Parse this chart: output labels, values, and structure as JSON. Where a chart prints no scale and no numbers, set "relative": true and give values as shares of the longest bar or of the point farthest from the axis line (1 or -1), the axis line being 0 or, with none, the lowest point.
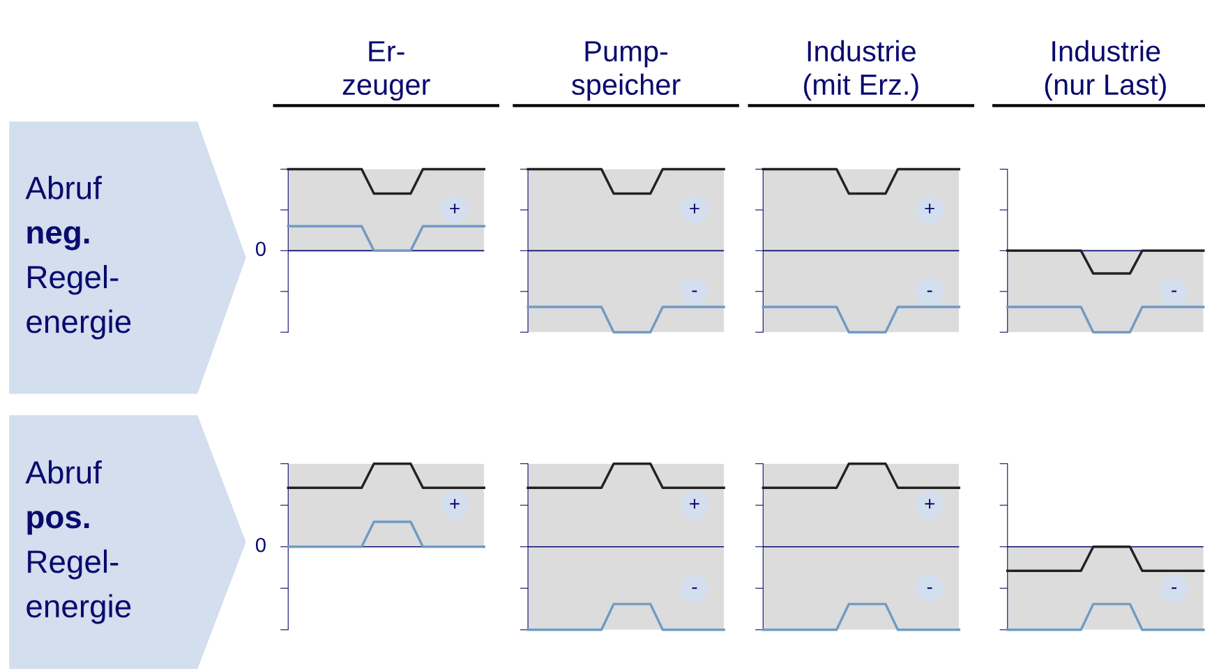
{
  "chart_data": [
    {
      "type": "line",
      "title": "Er-\nzeuger",
      "relative": true,
      "ref_lines": [
        {
          "axis": "y",
          "value": 0,
          "color": "#0a0a6e"
        }
      ],
      "categories": [
        null,
        null,
        null,
        null,
        null,
        null,
        null,
        null,
        null,
        null,
        null,
        null,
        null,
        null,
        null,
        null,
        null
      ],
      "series": [
        {
          "color": "#222222",
          "values": [
            1,
            1,
            1,
            1,
            1,
            1,
            1,
            0.7,
            0.7,
            0.7,
            0.7,
            1,
            1,
            1,
            1,
            1,
            1
          ]
        },
        {
          "color": "#6f9bc4",
          "values": [
            0.3,
            0.3,
            0.3,
            0.3,
            0.3,
            0.3,
            0.3,
            0,
            0,
            0,
            0,
            0.3,
            0.3,
            0.3,
            0.3,
            0.3,
            0.3
          ]
        }
      ],
      "bands": [
        {
          "axis": "y",
          "from": 0,
          "to": 1,
          "label": "+",
          "color": "#dcdcdc"
        }
      ],
      "annotations": [
        "Abruf\nneg.\nRegel-\nenergie",
        "0"
      ]
    },
    {
      "type": "line",
      "title": "Pump-\nspeicher",
      "relative": true,
      "ref_lines": [
        {
          "axis": "y",
          "value": 0,
          "color": "#0a0a6e"
        }
      ],
      "categories": [
        null,
        null,
        null,
        null,
        null,
        null,
        null,
        null,
        null,
        null,
        null,
        null,
        null,
        null,
        null,
        null,
        null
      ],
      "series": [
        {
          "color": "#222222",
          "values": [
            1,
            1,
            1,
            1,
            1,
            1,
            1,
            0.7,
            0.7,
            0.7,
            0.7,
            1,
            1,
            1,
            1,
            1,
            1
          ]
        },
        {
          "color": "#6f9bc4",
          "values": [
            -0.69,
            -0.69,
            -0.69,
            -0.69,
            -0.69,
            -0.69,
            -0.69,
            -1,
            -1,
            -1,
            -1,
            -0.69,
            -0.69,
            -0.69,
            -0.69,
            -0.69,
            -0.69
          ]
        }
      ],
      "bands": [
        {
          "axis": "y",
          "from": 0,
          "to": 1,
          "label": "+",
          "color": "#dcdcdc"
        },
        {
          "axis": "y",
          "from": -1,
          "to": 0,
          "label": "-",
          "color": "#dcdcdc"
        }
      ]
    },
    {
      "type": "line",
      "title": "Industrie\n(mit Erz.)",
      "relative": true,
      "ref_lines": [
        {
          "axis": "y",
          "value": 0,
          "color": "#0a0a6e"
        }
      ],
      "categories": [
        null,
        null,
        null,
        null,
        null,
        null,
        null,
        null,
        null,
        null,
        null,
        null,
        null,
        null,
        null,
        null,
        null
      ],
      "series": [
        {
          "color": "#222222",
          "values": [
            1,
            1,
            1,
            1,
            1,
            1,
            1,
            0.7,
            0.7,
            0.7,
            0.7,
            1,
            1,
            1,
            1,
            1,
            1
          ]
        },
        {
          "color": "#6f9bc4",
          "values": [
            -0.69,
            -0.69,
            -0.69,
            -0.69,
            -0.69,
            -0.69,
            -0.69,
            -1,
            -1,
            -1,
            -1,
            -0.69,
            -0.69,
            -0.69,
            -0.69,
            -0.69,
            -0.69
          ]
        }
      ],
      "bands": [
        {
          "axis": "y",
          "from": 0,
          "to": 1,
          "label": "+",
          "color": "#dcdcdc"
        },
        {
          "axis": "y",
          "from": -1,
          "to": 0,
          "label": "-",
          "color": "#dcdcdc"
        }
      ]
    },
    {
      "type": "line",
      "title": "Industrie\n(nur Last)",
      "relative": true,
      "ref_lines": [
        {
          "axis": "y",
          "value": 0,
          "color": "#0a0a6e"
        }
      ],
      "categories": [
        null,
        null,
        null,
        null,
        null,
        null,
        null,
        null,
        null,
        null,
        null,
        null,
        null,
        null,
        null,
        null,
        null
      ],
      "series": [
        {
          "color": "#222222",
          "values": [
            0,
            0,
            0,
            0,
            0,
            0,
            0,
            -0.28,
            -0.28,
            -0.28,
            -0.28,
            0,
            0,
            0,
            0,
            0,
            0
          ]
        },
        {
          "color": "#6f9bc4",
          "values": [
            -0.69,
            -0.69,
            -0.69,
            -0.69,
            -0.69,
            -0.69,
            -0.69,
            -1,
            -1,
            -1,
            -1,
            -0.69,
            -0.69,
            -0.69,
            -0.69,
            -0.69,
            -0.69
          ]
        }
      ],
      "bands": [
        {
          "axis": "y",
          "from": -1,
          "to": 0,
          "label": "-",
          "color": "#dcdcdc"
        }
      ]
    },
    {
      "type": "line",
      "relative": true,
      "ref_lines": [
        {
          "axis": "y",
          "value": 0,
          "color": "#0a0a6e"
        }
      ],
      "categories": [
        null,
        null,
        null,
        null,
        null,
        null,
        null,
        null,
        null,
        null,
        null,
        null,
        null,
        null,
        null,
        null,
        null
      ],
      "series": [
        {
          "color": "#222222",
          "values": [
            0.71,
            0.71,
            0.71,
            0.71,
            0.71,
            0.71,
            0.71,
            1,
            1,
            1,
            1,
            0.71,
            0.71,
            0.71,
            0.71,
            0.71,
            0.71
          ]
        },
        {
          "color": "#6f9bc4",
          "values": [
            0,
            0,
            0,
            0,
            0,
            0,
            0,
            0.3,
            0.3,
            0.3,
            0.3,
            0,
            0,
            0,
            0,
            0,
            0
          ]
        }
      ],
      "bands": [
        {
          "axis": "y",
          "from": 0,
          "to": 1,
          "label": "+",
          "color": "#dcdcdc"
        }
      ],
      "annotations": [
        "Abruf\npos.\nRegel-\nenergie",
        "0"
      ]
    },
    {
      "type": "line",
      "relative": true,
      "ref_lines": [
        {
          "axis": "y",
          "value": 0,
          "color": "#0a0a6e"
        }
      ],
      "categories": [
        null,
        null,
        null,
        null,
        null,
        null,
        null,
        null,
        null,
        null,
        null,
        null,
        null,
        null,
        null,
        null,
        null
      ],
      "series": [
        {
          "color": "#222222",
          "values": [
            0.71,
            0.71,
            0.71,
            0.71,
            0.71,
            0.71,
            0.71,
            1,
            1,
            1,
            1,
            0.71,
            0.71,
            0.71,
            0.71,
            0.71,
            0.71
          ]
        },
        {
          "color": "#6f9bc4",
          "values": [
            -1,
            -1,
            -1,
            -1,
            -1,
            -1,
            -1,
            -0.69,
            -0.69,
            -0.69,
            -0.69,
            -1,
            -1,
            -1,
            -1,
            -1,
            -1
          ]
        }
      ],
      "bands": [
        {
          "axis": "y",
          "from": 0,
          "to": 1,
          "label": "+",
          "color": "#dcdcdc"
        },
        {
          "axis": "y",
          "from": -1,
          "to": 0,
          "label": "-",
          "color": "#dcdcdc"
        }
      ]
    },
    {
      "type": "line",
      "relative": true,
      "ref_lines": [
        {
          "axis": "y",
          "value": 0,
          "color": "#0a0a6e"
        }
      ],
      "categories": [
        null,
        null,
        null,
        null,
        null,
        null,
        null,
        null,
        null,
        null,
        null,
        null,
        null,
        null,
        null,
        null,
        null
      ],
      "series": [
        {
          "color": "#222222",
          "values": [
            0.71,
            0.71,
            0.71,
            0.71,
            0.71,
            0.71,
            0.71,
            1,
            1,
            1,
            1,
            0.71,
            0.71,
            0.71,
            0.71,
            0.71,
            0.71
          ]
        },
        {
          "color": "#6f9bc4",
          "values": [
            -1,
            -1,
            -1,
            -1,
            -1,
            -1,
            -1,
            -0.69,
            -0.69,
            -0.69,
            -0.69,
            -1,
            -1,
            -1,
            -1,
            -1,
            -1
          ]
        }
      ],
      "bands": [
        {
          "axis": "y",
          "from": 0,
          "to": 1,
          "label": "+",
          "color": "#dcdcdc"
        },
        {
          "axis": "y",
          "from": -1,
          "to": 0,
          "label": "-",
          "color": "#dcdcdc"
        }
      ]
    },
    {
      "type": "line",
      "relative": true,
      "ref_lines": [
        {
          "axis": "y",
          "value": 0,
          "color": "#0a0a6e"
        }
      ],
      "categories": [
        null,
        null,
        null,
        null,
        null,
        null,
        null,
        null,
        null,
        null,
        null,
        null,
        null,
        null,
        null,
        null,
        null
      ],
      "series": [
        {
          "color": "#222222",
          "values": [
            -0.29,
            -0.29,
            -0.29,
            -0.29,
            -0.29,
            -0.29,
            -0.29,
            0,
            0,
            0,
            0,
            -0.29,
            -0.29,
            -0.29,
            -0.29,
            -0.29,
            -0.29
          ]
        },
        {
          "color": "#6f9bc4",
          "values": [
            -1,
            -1,
            -1,
            -1,
            -1,
            -1,
            -1,
            -0.69,
            -0.69,
            -0.69,
            -0.69,
            -1,
            -1,
            -1,
            -1,
            -1,
            -1
          ]
        }
      ],
      "bands": [
        {
          "axis": "y",
          "from": -1,
          "to": 0,
          "label": "-",
          "color": "#dcdcdc"
        }
      ]
    }
  ]
}
